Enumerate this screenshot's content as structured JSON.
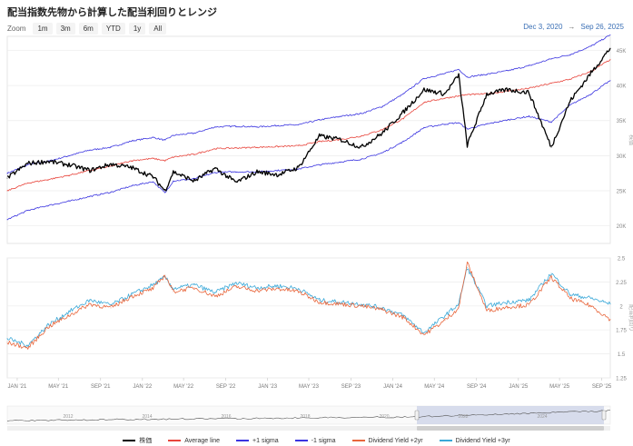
{
  "title": "配当指数先物から計算した配当利回りとレンジ",
  "zoom": {
    "label": "Zoom",
    "buttons": [
      "1m",
      "3m",
      "6m",
      "YTD",
      "1y",
      "All"
    ]
  },
  "range": {
    "from": "Dec 3, 2020",
    "arrow": "→",
    "to": "Sep 26, 2025"
  },
  "colors": {
    "price": "#000000",
    "average": "#e8453c",
    "plus1": "#3b35e0",
    "minus1": "#3b35e0",
    "dy2": "#e8663c",
    "dy3": "#3aa8d8",
    "navigator": "#7d8db8",
    "navigator_fill": "#c7cfe6"
  },
  "legend": [
    {
      "label": "株価",
      "color": "#000000"
    },
    {
      "label": "Average line",
      "color": "#e8453c"
    },
    {
      "label": "+1 sigma",
      "color": "#3b35e0"
    },
    {
      "label": "-1 sigma",
      "color": "#3b35e0"
    },
    {
      "label": "Dividend Yield +2yr",
      "color": "#e8663c"
    },
    {
      "label": "Dividend Yield +3yr",
      "color": "#3aa8d8"
    }
  ],
  "navigator": {
    "year_labels": [
      "2012",
      "2014",
      "2016",
      "2018",
      "2020",
      "2022",
      "2024"
    ]
  },
  "chart_data": [
    {
      "type": "line",
      "ylabel": "株価",
      "ylim": [
        17500,
        47000
      ],
      "yticks": [
        20000,
        25000,
        30000,
        35000,
        40000,
        45000
      ],
      "ytick_labels": [
        "20K",
        "25K",
        "30K",
        "35K",
        "40K",
        "45K"
      ],
      "x": [
        "2020-12-03",
        "2021-02-01",
        "2021-04-01",
        "2021-06-01",
        "2021-08-01",
        "2021-10-01",
        "2021-12-01",
        "2022-02-01",
        "2022-03-08",
        "2022-04-01",
        "2022-06-01",
        "2022-08-01",
        "2022-10-01",
        "2022-12-01",
        "2023-02-01",
        "2023-04-01",
        "2023-06-01",
        "2023-08-01",
        "2023-10-01",
        "2023-12-01",
        "2024-02-01",
        "2024-04-01",
        "2024-06-01",
        "2024-07-11",
        "2024-08-05",
        "2024-10-01",
        "2024-12-01",
        "2025-02-01",
        "2025-04-07",
        "2025-06-01",
        "2025-08-01",
        "2025-09-26"
      ],
      "series": [
        {
          "name": "株価",
          "values": [
            26800,
            28900,
            29200,
            28700,
            27900,
            28800,
            28300,
            27000,
            25000,
            27700,
            26400,
            28200,
            26200,
            27700,
            27300,
            28300,
            32800,
            32300,
            31200,
            33200,
            36200,
            39400,
            38800,
            41500,
            31500,
            38800,
            39400,
            39000,
            31200,
            37800,
            41800,
            45300
          ]
        },
        {
          "name": "Average line",
          "values": [
            25000,
            26100,
            26600,
            27200,
            27900,
            28500,
            29300,
            29600,
            29300,
            29800,
            30200,
            31000,
            31100,
            31200,
            31300,
            31400,
            32000,
            32300,
            32800,
            33700,
            35300,
            37600,
            38200,
            38500,
            38700,
            38800,
            39200,
            39600,
            40300,
            40900,
            42000,
            43700
          ]
        },
        {
          "name": "+1 sigma",
          "values": [
            27500,
            28700,
            29200,
            30000,
            30800,
            31200,
            32100,
            32600,
            32200,
            32900,
            33200,
            34100,
            34200,
            34100,
            34300,
            34400,
            35100,
            35600,
            36000,
            37000,
            38800,
            41000,
            41700,
            42300,
            41200,
            41600,
            42100,
            42800,
            43800,
            44400,
            45600,
            47200
          ]
        },
        {
          "name": "-1 sigma",
          "values": [
            20900,
            22200,
            22900,
            23500,
            24200,
            24800,
            25700,
            26300,
            24700,
            26400,
            26700,
            27600,
            27700,
            27700,
            27900,
            28100,
            28700,
            29100,
            29500,
            30400,
            32000,
            34000,
            34500,
            34700,
            33800,
            34500,
            35100,
            35600,
            34800,
            37200,
            38800,
            40700
          ]
        }
      ]
    },
    {
      "type": "line",
      "ylabel": "配当利回り",
      "ylim": [
        1.25,
        2.5
      ],
      "yticks": [
        1.25,
        1.5,
        1.75,
        2,
        2.25,
        2.5
      ],
      "ytick_labels": [
        "1.25",
        "1.5",
        "1.75",
        "2",
        "2.25",
        "2.5"
      ],
      "xtick_labels": [
        "JAN '21",
        "MAY '21",
        "SEP '21",
        "JAN '22",
        "MAY '22",
        "SEP '22",
        "JAN '23",
        "MAY '23",
        "SEP '23",
        "JAN '24",
        "MAY '24",
        "SEP '24",
        "JAN '25",
        "MAY '25",
        "SEP '25"
      ],
      "x": [
        "2020-12-03",
        "2021-02-01",
        "2021-04-01",
        "2021-06-01",
        "2021-08-01",
        "2021-10-01",
        "2021-12-01",
        "2022-02-01",
        "2022-03-08",
        "2022-04-01",
        "2022-06-01",
        "2022-08-01",
        "2022-10-01",
        "2022-12-01",
        "2023-02-01",
        "2023-04-01",
        "2023-06-01",
        "2023-08-01",
        "2023-10-01",
        "2023-12-01",
        "2024-02-01",
        "2024-04-01",
        "2024-06-01",
        "2024-07-11",
        "2024-08-05",
        "2024-10-01",
        "2024-12-01",
        "2025-02-01",
        "2025-04-07",
        "2025-06-01",
        "2025-08-01",
        "2025-09-26"
      ],
      "series": [
        {
          "name": "Dividend Yield +2yr",
          "values": [
            1.62,
            1.56,
            1.78,
            1.9,
            2.02,
            1.98,
            2.1,
            2.18,
            2.32,
            2.15,
            2.19,
            2.1,
            2.2,
            2.16,
            2.18,
            2.15,
            2.04,
            2.02,
            2.0,
            1.96,
            1.88,
            1.7,
            1.85,
            1.98,
            2.45,
            1.95,
            1.99,
            2.01,
            2.3,
            2.08,
            2.0,
            1.86
          ]
        },
        {
          "name": "Dividend Yield +3yr",
          "values": [
            1.66,
            1.59,
            1.8,
            1.94,
            2.06,
            2.01,
            2.12,
            2.22,
            2.3,
            2.18,
            2.22,
            2.14,
            2.24,
            2.19,
            2.21,
            2.18,
            2.06,
            2.04,
            2.02,
            1.98,
            1.9,
            1.72,
            1.9,
            2.02,
            2.4,
            2.0,
            2.04,
            2.06,
            2.34,
            2.12,
            2.08,
            2.02
          ]
        }
      ]
    }
  ]
}
